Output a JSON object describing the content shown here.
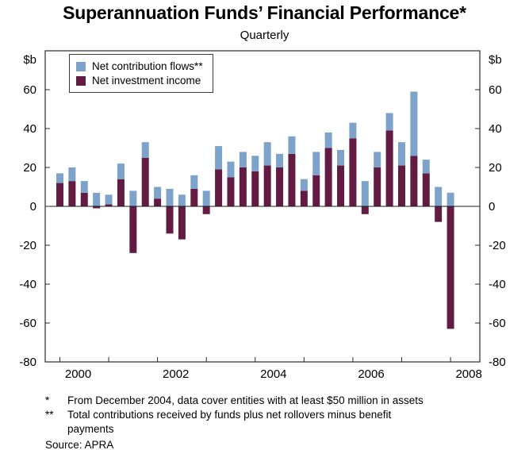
{
  "title": "Superannuation Funds’ Financial Performance*",
  "subtitle": "Quarterly",
  "legend": [
    {
      "label": "Net contribution flows**",
      "color": "#7da3cb"
    },
    {
      "label": "Net investment income",
      "color": "#621b41"
    }
  ],
  "chart_data": {
    "type": "bar",
    "stacked": true,
    "title": "Superannuation Funds’ Financial Performance*",
    "subtitle": "Quarterly",
    "ylabel": "$b",
    "ylim": [
      -80,
      80
    ],
    "y_ticks": [
      60,
      40,
      20,
      0,
      -20,
      -40,
      -60,
      -80
    ],
    "x_year_labels": [
      2000,
      2002,
      2004,
      2006,
      2008
    ],
    "grid": false,
    "legend_position": "top-left",
    "categories": [
      "2000 Q1",
      "2000 Q2",
      "2000 Q3",
      "2000 Q4",
      "2001 Q1",
      "2001 Q2",
      "2001 Q3",
      "2001 Q4",
      "2002 Q1",
      "2002 Q2",
      "2002 Q3",
      "2002 Q4",
      "2003 Q1",
      "2003 Q2",
      "2003 Q3",
      "2003 Q4",
      "2004 Q1",
      "2004 Q2",
      "2004 Q3",
      "2004 Q4",
      "2005 Q1",
      "2005 Q2",
      "2005 Q3",
      "2005 Q4",
      "2006 Q1",
      "2006 Q2",
      "2006 Q3",
      "2006 Q4",
      "2007 Q1",
      "2007 Q2",
      "2007 Q3",
      "2007 Q4",
      "2008 Q1"
    ],
    "series": [
      {
        "name": "Net investment income",
        "color": "#621b41",
        "values": [
          12,
          13,
          7,
          -1,
          1,
          14,
          -24,
          25,
          4,
          -14,
          -17,
          9,
          -4,
          19,
          15,
          20,
          18,
          21,
          20,
          27,
          8,
          16,
          30,
          21,
          35,
          -4,
          20,
          39,
          21,
          26,
          17,
          -8,
          -63
        ]
      },
      {
        "name": "Net contribution flows",
        "color": "#7da3cb",
        "values": [
          5,
          7,
          6,
          7,
          5,
          8,
          8,
          8,
          6,
          9,
          6,
          7,
          8,
          12,
          8,
          8,
          8,
          12,
          7,
          9,
          6,
          12,
          8,
          8,
          8,
          13,
          8,
          9,
          12,
          33,
          7,
          10,
          7
        ]
      }
    ]
  },
  "footnotes": [
    {
      "marker": "*",
      "text": "From December 2004, data cover entities with at least $50 million in assets"
    },
    {
      "marker": "**",
      "text": "Total contributions received by funds plus net rollovers minus benefit\npayments"
    }
  ],
  "source": "Source: APRA"
}
